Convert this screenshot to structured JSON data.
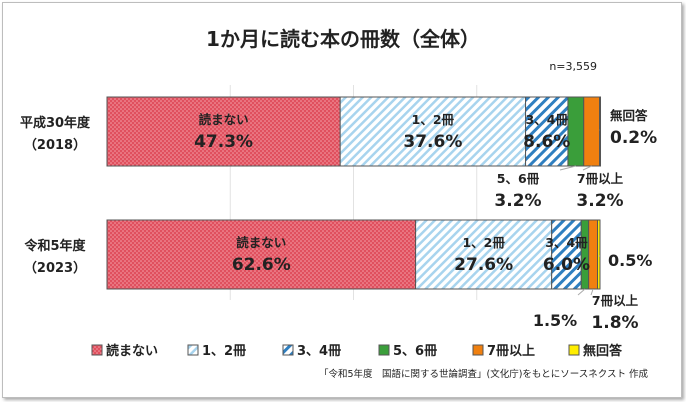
{
  "chart_data": {
    "type": "bar",
    "orientation": "horizontal",
    "stacked": true,
    "title": "1か月に読む本の冊数（全体）",
    "sample_size": "n=3,559",
    "categories": [
      "平成30年度\n（2018）",
      "令和5年度\n（2023）"
    ],
    "category_lines": [
      [
        "平成30年度",
        "（2018）"
      ],
      [
        "令和5年度",
        "（2023）"
      ]
    ],
    "series": [
      {
        "name": "読まない",
        "values": [
          47.3,
          62.6
        ],
        "color": "#e0505e",
        "pattern": "dots"
      },
      {
        "name": "1、2冊",
        "values": [
          37.6,
          27.6
        ],
        "color": "#a8d4ee",
        "pattern": "thin-diagonal"
      },
      {
        "name": "3、4冊",
        "values": [
          8.6,
          6.0
        ],
        "color": "#2f7fc0",
        "pattern": "bold-diagonal"
      },
      {
        "name": "5、6冊",
        "values": [
          3.2,
          1.5
        ],
        "color": "#3a9e3a",
        "pattern": "solid"
      },
      {
        "name": "7冊以上",
        "values": [
          3.2,
          1.8
        ],
        "color": "#f08010",
        "pattern": "solid"
      },
      {
        "name": "無回答",
        "values": [
          0.2,
          0.5
        ],
        "color": "#ffee00",
        "pattern": "solid"
      }
    ],
    "data_labels": [
      [
        "読まない|47.3%",
        "1、2冊|37.6%",
        "3、4冊|8.6%",
        "5、6冊|3.2%",
        "7冊以上|3.2%",
        "無回答|0.2%"
      ],
      [
        "読まない|62.6%",
        "1、2冊|27.6%",
        "3、4冊|6.0%",
        "1.5%",
        "7冊以上|1.8%",
        "0.5%"
      ]
    ],
    "xlim": [
      0,
      100
    ],
    "grid": true,
    "legend_position": "bottom",
    "source": "「令和5年度　国語に関する世論調査」(文化庁)をもとにソースネクスト 作成"
  }
}
